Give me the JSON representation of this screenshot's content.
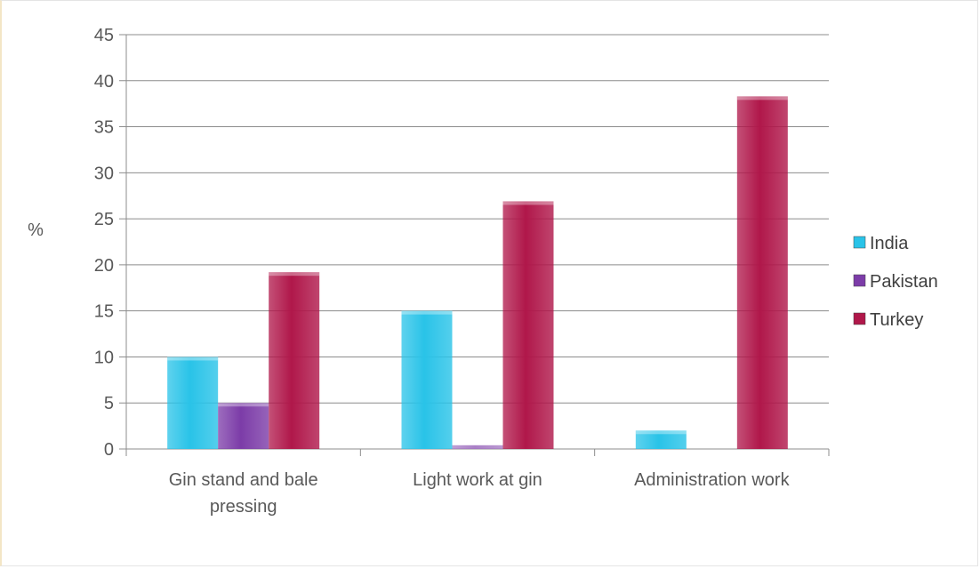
{
  "chart_data": {
    "type": "bar",
    "ylabel": "%",
    "ylim": [
      0,
      45
    ],
    "yticks": [
      0,
      5,
      10,
      15,
      20,
      25,
      30,
      35,
      40,
      45
    ],
    "grid": true,
    "legend_position": "right",
    "categories": [
      [
        "Gin stand and bale",
        "pressing"
      ],
      [
        "Light work at gin"
      ],
      [
        "Administration work"
      ]
    ],
    "series": [
      {
        "name": "India",
        "color": "#29c3e8",
        "values": [
          10,
          15,
          2
        ]
      },
      {
        "name": "Pakistan",
        "color": "#7c3ca8",
        "values": [
          5,
          0.4,
          0
        ]
      },
      {
        "name": "Turkey",
        "color": "#b0174a",
        "values": [
          19.2,
          26.9,
          38.3
        ]
      }
    ]
  }
}
